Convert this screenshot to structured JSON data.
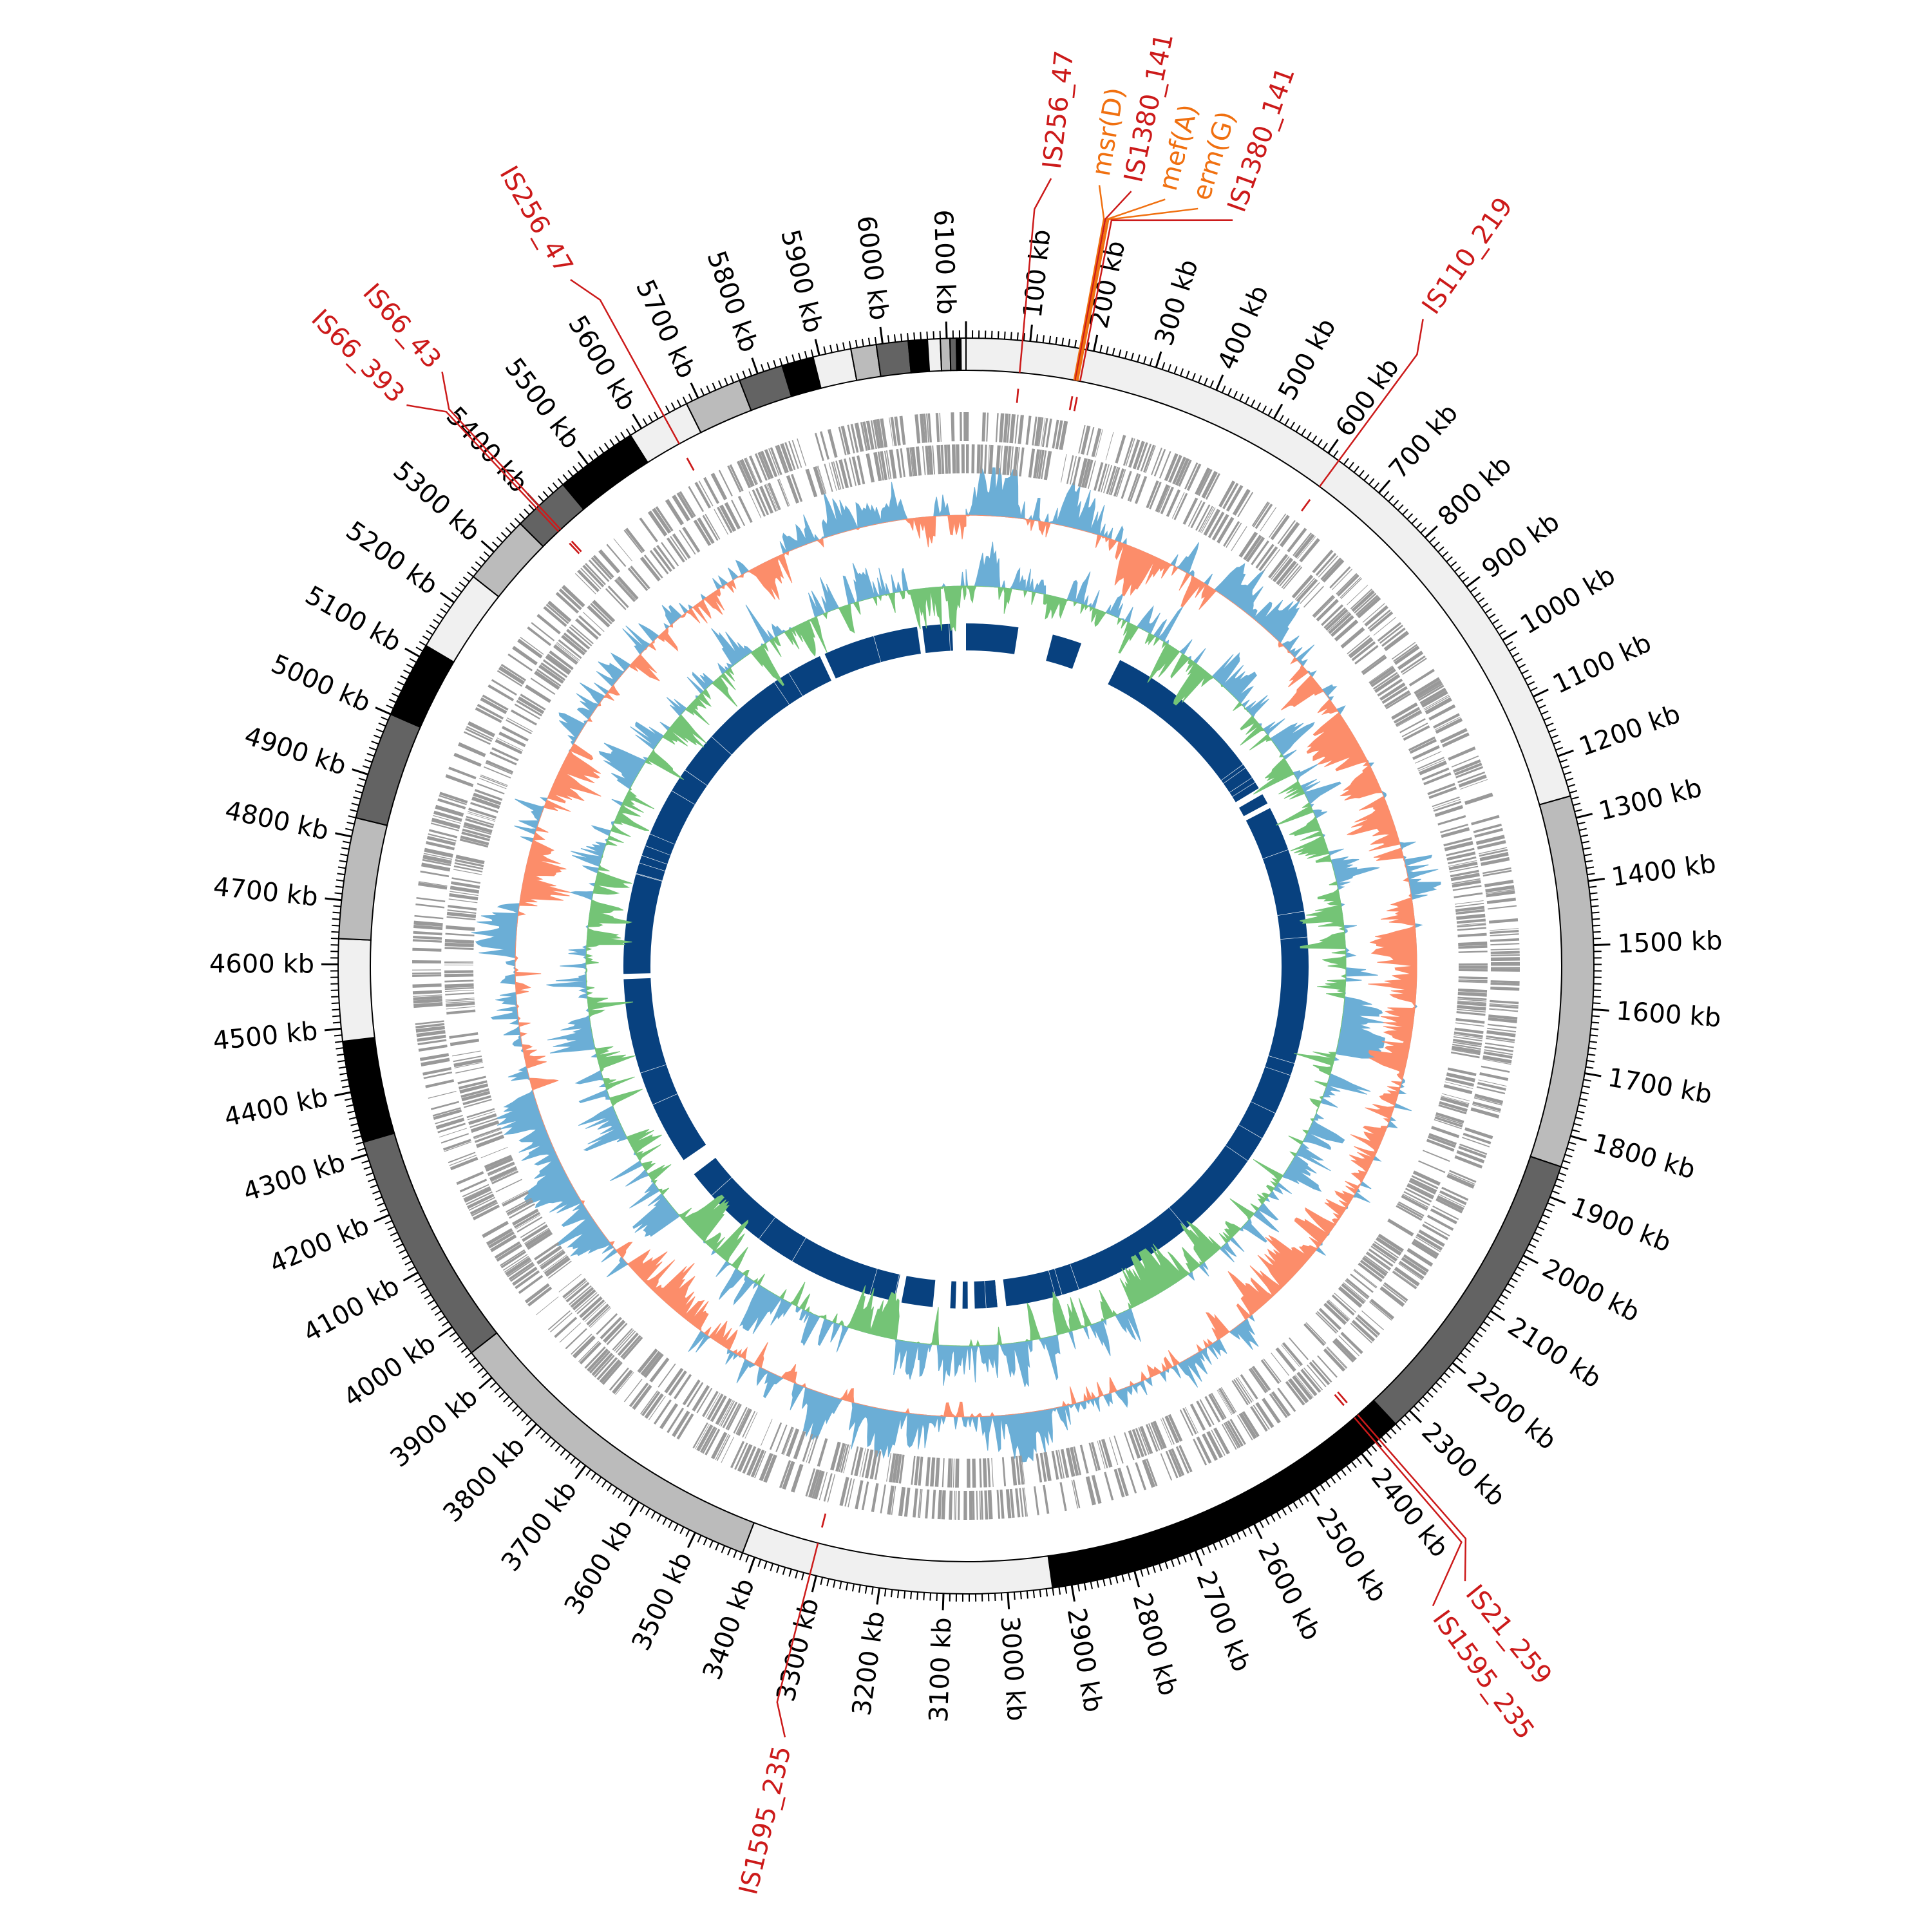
{
  "chart_data": {
    "type": "circular-genome",
    "title": "",
    "genome_length_kb": 6130,
    "tick_unit": "kb",
    "tick_labels": [
      "100 kb",
      "200 kb",
      "300 kb",
      "400 kb",
      "500 kb",
      "600 kb",
      "700 kb",
      "800 kb",
      "900 kb",
      "1000 kb",
      "1100 kb",
      "1200 kb",
      "1300 kb",
      "1400 kb",
      "1500 kb",
      "1600 kb",
      "1700 kb",
      "1800 kb",
      "1900 kb",
      "2000 kb",
      "2100 kb",
      "2200 kb",
      "2300 kb",
      "2400 kb",
      "2500 kb",
      "2600 kb",
      "2700 kb",
      "2800 kb",
      "2900 kb",
      "3000 kb",
      "3100 kb",
      "3200 kb",
      "3300 kb",
      "3400 kb",
      "3500 kb",
      "3600 kb",
      "3700 kb",
      "3800 kb",
      "3900 kb",
      "4000 kb",
      "4100 kb",
      "4200 kb",
      "4300 kb",
      "4400 kb",
      "4500 kb",
      "4600 kb",
      "4700 kb",
      "4800 kb",
      "4900 kb",
      "5000 kb",
      "5100 kb",
      "5200 kb",
      "5300 kb",
      "5400 kb",
      "5500 kb",
      "5600 kb",
      "5700 kb",
      "5800 kb",
      "5900 kb",
      "6000 kb",
      "6100 kb"
    ],
    "contigs": [
      {
        "start": 0,
        "end": 1265,
        "color": "#f0f0f0"
      },
      {
        "start": 1265,
        "end": 1850,
        "color": "#bbbbbb"
      },
      {
        "start": 1850,
        "end": 2330,
        "color": "#636363"
      },
      {
        "start": 2330,
        "end": 2930,
        "color": "#000000"
      },
      {
        "start": 2930,
        "end": 3420,
        "color": "#f0f0f0"
      },
      {
        "start": 3420,
        "end": 3950,
        "color": "#bbbbbb"
      },
      {
        "start": 3950,
        "end": 4320,
        "color": "#636363"
      },
      {
        "start": 4320,
        "end": 4480,
        "color": "#000000"
      },
      {
        "start": 4480,
        "end": 4640,
        "color": "#f0f0f0"
      },
      {
        "start": 4640,
        "end": 4830,
        "color": "#bbbbbb"
      },
      {
        "start": 4830,
        "end": 5000,
        "color": "#636363"
      },
      {
        "start": 5000,
        "end": 5120,
        "color": "#000000"
      },
      {
        "start": 5120,
        "end": 5250,
        "color": "#f0f0f0"
      },
      {
        "start": 5250,
        "end": 5360,
        "color": "#bbbbbb"
      },
      {
        "start": 5360,
        "end": 5450,
        "color": "#636363"
      },
      {
        "start": 5450,
        "end": 5580,
        "color": "#000000"
      },
      {
        "start": 5580,
        "end": 5680,
        "color": "#f0f0f0"
      },
      {
        "start": 5680,
        "end": 5770,
        "color": "#bbbbbb"
      },
      {
        "start": 5770,
        "end": 5840,
        "color": "#636363"
      },
      {
        "start": 5840,
        "end": 5890,
        "color": "#000000"
      },
      {
        "start": 5890,
        "end": 5950,
        "color": "#f0f0f0"
      },
      {
        "start": 5950,
        "end": 5990,
        "color": "#bbbbbb"
      },
      {
        "start": 5990,
        "end": 6040,
        "color": "#636363"
      },
      {
        "start": 6040,
        "end": 6070,
        "color": "#000000"
      },
      {
        "start": 6070,
        "end": 6090,
        "color": "#f0f0f0"
      },
      {
        "start": 6090,
        "end": 6105,
        "color": "#bbbbbb"
      },
      {
        "start": 6105,
        "end": 6115,
        "color": "#636363"
      },
      {
        "start": 6115,
        "end": 6122,
        "color": "#000000"
      },
      {
        "start": 6122,
        "end": 6130,
        "color": "#f0f0f0"
      }
    ],
    "annotations": [
      {
        "label": "IS256_47",
        "pos": 88,
        "label_pos": 105,
        "type": "IS",
        "color": "#cc1a1a"
      },
      {
        "label": "msr(D)",
        "pos": 178,
        "label_pos": 165,
        "type": "ARG",
        "color": "#f07010"
      },
      {
        "label": "IS1380_141",
        "pos": 180,
        "label_pos": 205,
        "type": "IS",
        "color": "#cc1a1a"
      },
      {
        "label": "mef(A)",
        "pos": 182,
        "label_pos": 248,
        "type": "ARG",
        "color": "#f07010"
      },
      {
        "label": "erm(G)",
        "pos": 184,
        "label_pos": 290,
        "type": "ARG",
        "color": "#f07010"
      },
      {
        "label": "IS1380_141",
        "pos": 188,
        "label_pos": 335,
        "type": "IS",
        "color": "#cc1a1a"
      },
      {
        "label": "IS110_219",
        "pos": 620,
        "label_pos": 600,
        "type": "IS",
        "color": "#cc1a1a"
      },
      {
        "label": "IS21_259",
        "pos": 2365,
        "label_pos": 2400,
        "type": "IS",
        "color": "#cc1a1a"
      },
      {
        "label": "IS1595_235",
        "pos": 2372,
        "label_pos": 2450,
        "type": "IS",
        "color": "#cc1a1a"
      },
      {
        "label": "IS1595_235",
        "pos": 3310,
        "label_pos": 3290,
        "type": "IS",
        "color": "#cc1a1a"
      },
      {
        "label": "IS66_393",
        "pos": 5395,
        "label_pos": 5365,
        "type": "IS",
        "color": "#cc1a1a"
      },
      {
        "label": "IS66_43",
        "pos": 5400,
        "label_pos": 5425,
        "type": "IS",
        "color": "#cc1a1a"
      },
      {
        "label": "IS256_47",
        "pos": 5640,
        "label_pos": 5620,
        "type": "IS",
        "color": "#cc1a1a"
      }
    ],
    "alignment_blocks": [
      [
        0,
        150
      ],
      [
        250,
        335
      ],
      [
        455,
        1000
      ],
      [
        1020,
        1050
      ],
      [
        1065,
        2950
      ],
      [
        2975,
        3040
      ],
      [
        3060,
        3075
      ],
      [
        3095,
        3110
      ],
      [
        3160,
        3250
      ],
      [
        3270,
        3960
      ],
      [
        4010,
        4560
      ],
      [
        4575,
        5700
      ],
      [
        5715,
        5990
      ],
      [
        6005,
        6090
      ]
    ],
    "colors": {
      "gene_track": "#999999",
      "gc_high": "#6baed6",
      "gc_low": "#fc8d6a",
      "skew_pos": "#6baed6",
      "skew_neg": "#74c476",
      "alignment": "#08417f",
      "is_mark": "#cc1a1a"
    }
  }
}
